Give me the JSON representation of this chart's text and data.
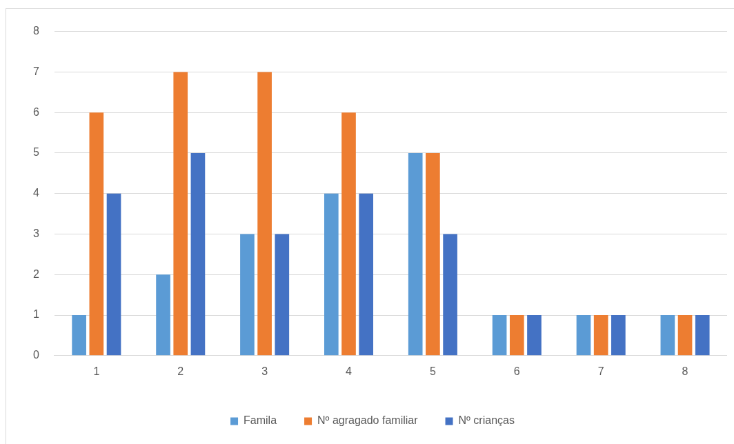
{
  "chart_data": {
    "type": "bar",
    "categories": [
      "1",
      "2",
      "3",
      "4",
      "5",
      "6",
      "7",
      "8"
    ],
    "series": [
      {
        "name": "Famila",
        "color": "#5b9bd5",
        "values": [
          1,
          2,
          3,
          4,
          5,
          1,
          1,
          1
        ]
      },
      {
        "name": "Nº agragado familiar",
        "color": "#ed7d31",
        "values": [
          6,
          7,
          7,
          6,
          5,
          1,
          1,
          1
        ]
      },
      {
        "name": "Nº crianças",
        "color": "#4472c4",
        "values": [
          4,
          5,
          3,
          4,
          3,
          1,
          1,
          1
        ]
      }
    ],
    "ylim": [
      0,
      8
    ],
    "yticks": [
      0,
      1,
      2,
      3,
      4,
      5,
      6,
      7,
      8
    ],
    "grid": "y",
    "legend": "bottom"
  }
}
